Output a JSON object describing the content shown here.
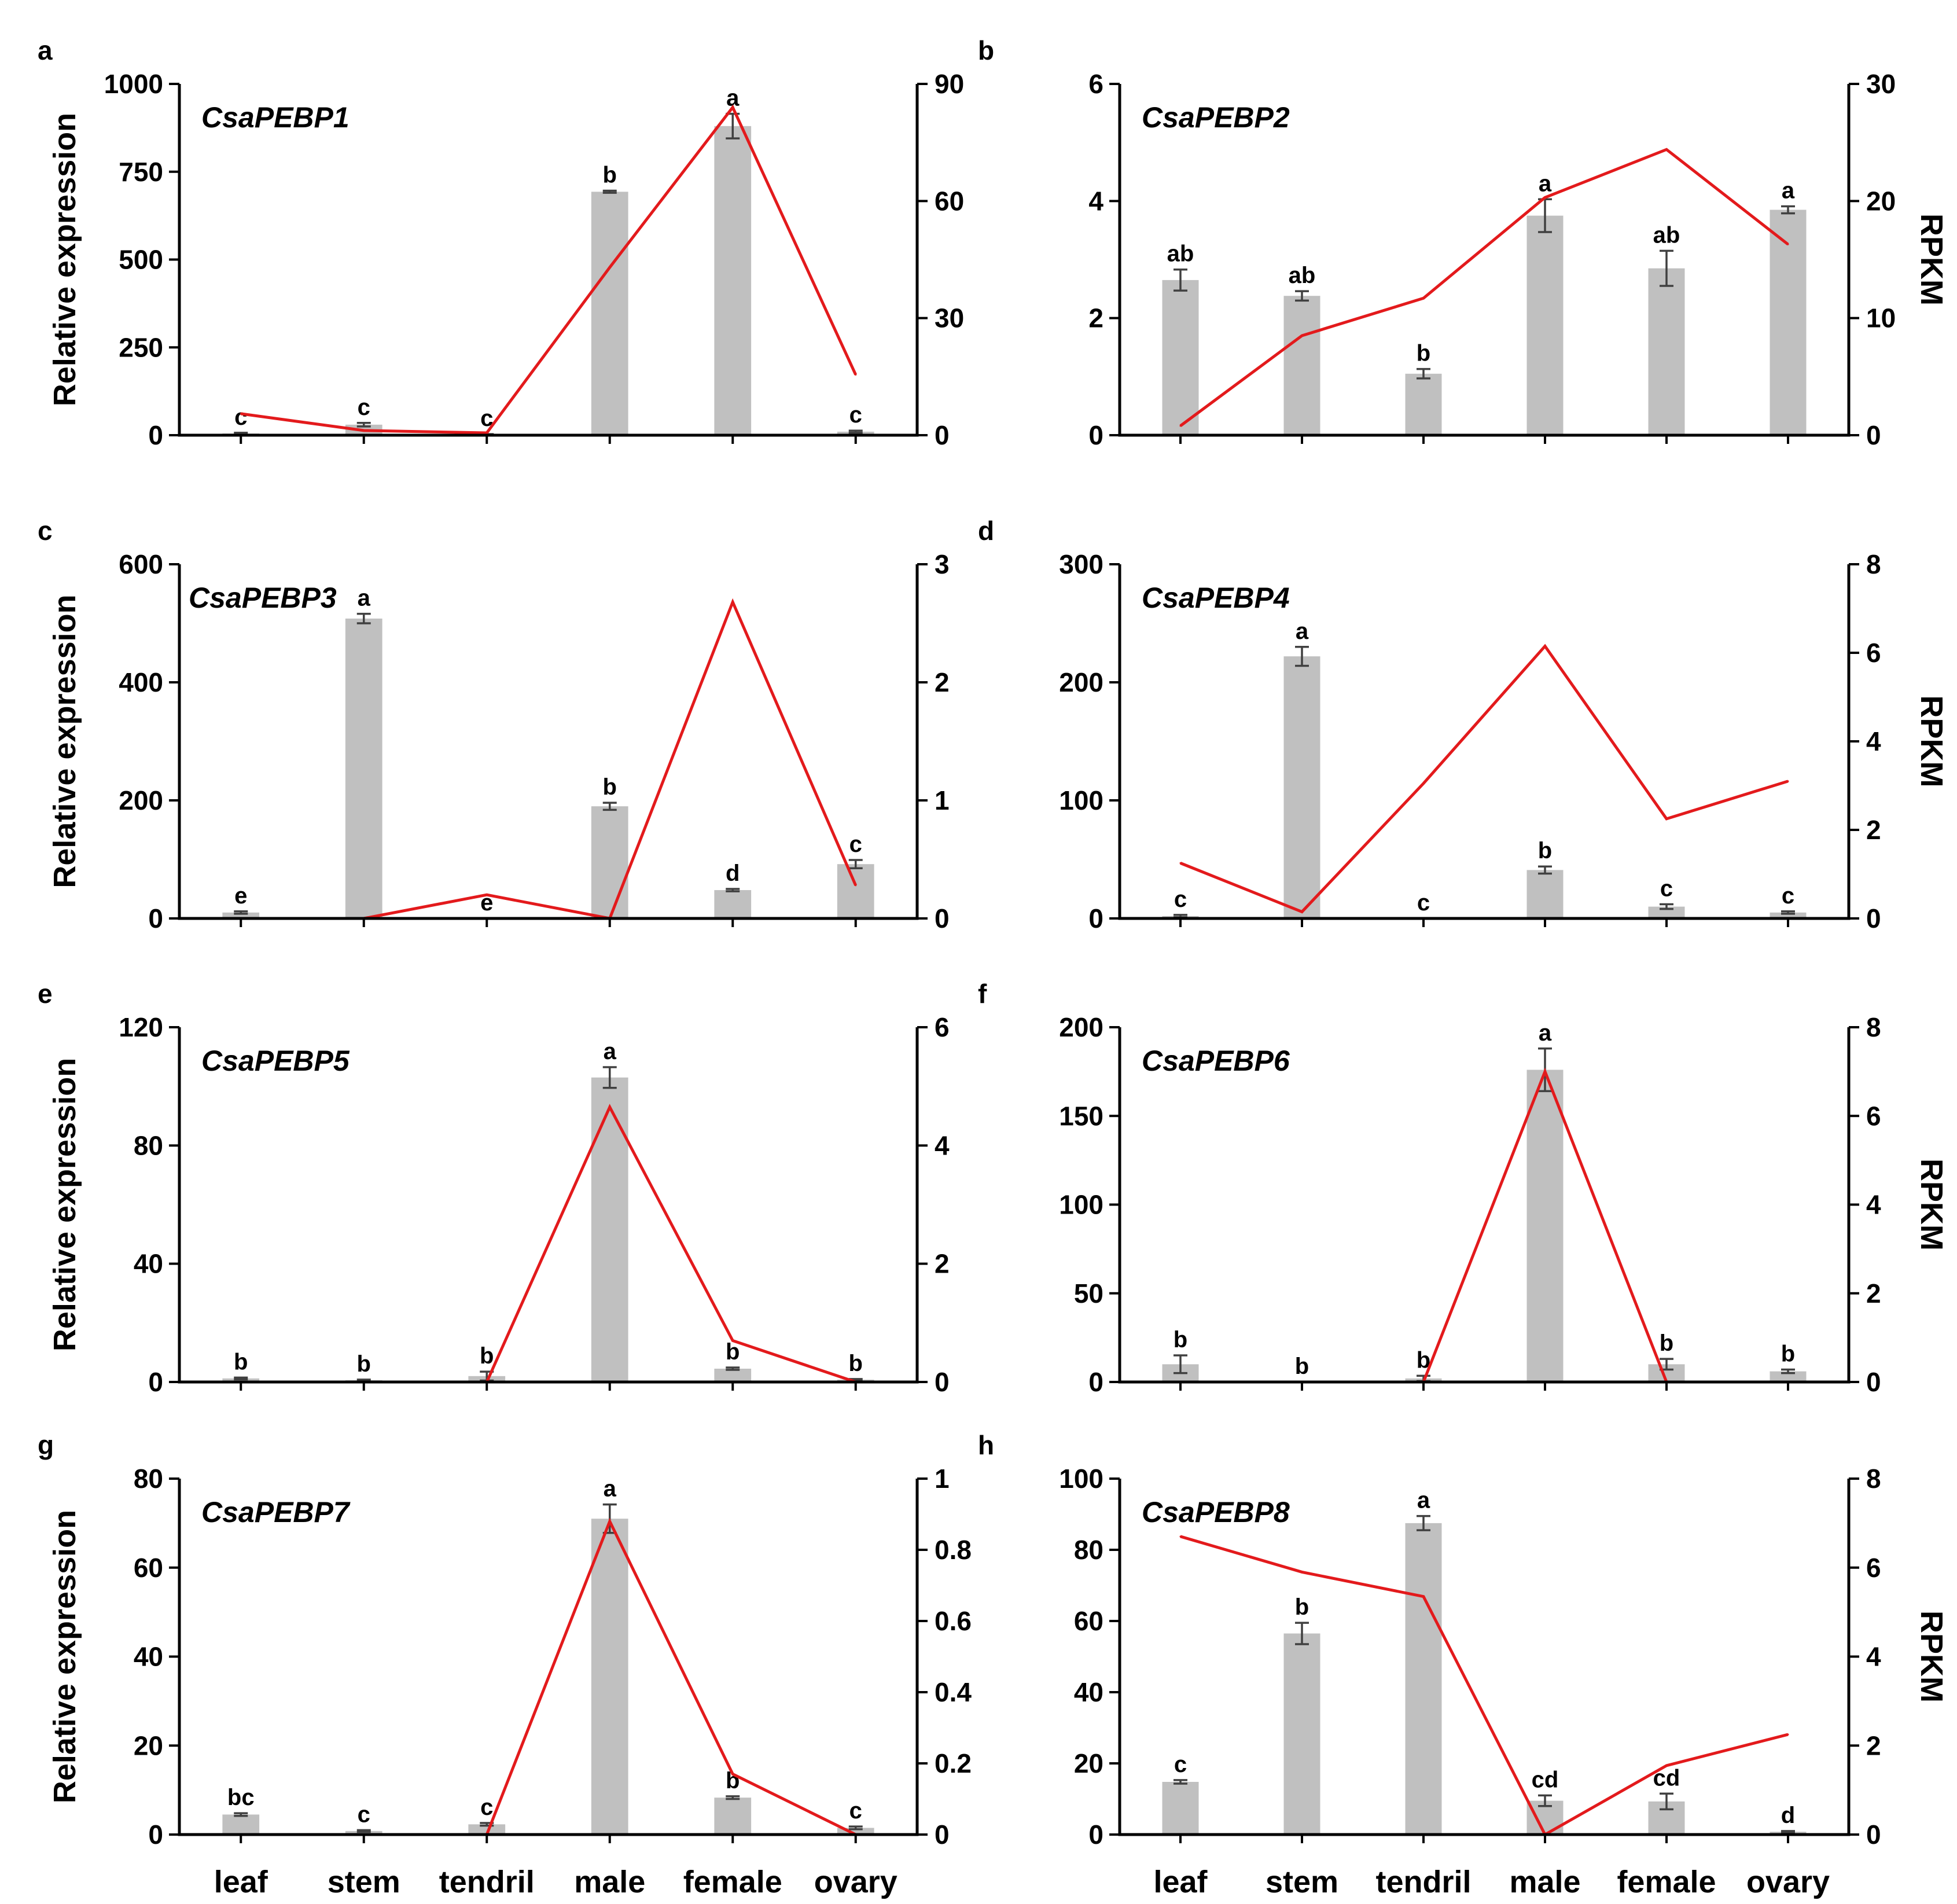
{
  "figure": {
    "categories": [
      "leaf",
      "stem",
      "tendril",
      "male",
      "female",
      "ovary"
    ],
    "left_axis_label": "Relative expression",
    "right_axis_label": "RPKM",
    "colors": {
      "bar": "#c0c0c0",
      "line": "#e31a1c",
      "error": "#404040",
      "axis": "#000000"
    }
  },
  "chart_data": [
    {
      "panel": "a",
      "title": "CsaPEBP1",
      "type": "bar+line",
      "ylim": [
        0,
        1000
      ],
      "yticks": [
        "0",
        "250",
        "500",
        "750",
        "1000"
      ],
      "y2lim": [
        0,
        90
      ],
      "y2ticks": [
        "0",
        "30",
        "60",
        "90"
      ],
      "ylabel": "Relative expression",
      "y2label": "",
      "values": [
        5,
        30,
        2,
        693,
        880,
        10
      ],
      "errors": [
        2,
        5,
        1,
        3,
        35,
        3
      ],
      "significance": [
        "c",
        "c",
        "c",
        "b",
        "a",
        "c"
      ],
      "rpkm": [
        5.5,
        1.2,
        0.6,
        43,
        84,
        15.5
      ]
    },
    {
      "panel": "b",
      "title": "CsaPEBP2",
      "type": "bar+line",
      "ylim": [
        0,
        6
      ],
      "yticks": [
        "0",
        "2",
        "4",
        "6"
      ],
      "y2lim": [
        0,
        30
      ],
      "y2ticks": [
        "0",
        "10",
        "20",
        "30"
      ],
      "ylabel": "",
      "y2label": "RPKM",
      "values": [
        2.65,
        2.38,
        1.05,
        3.75,
        2.85,
        3.85
      ],
      "errors": [
        0.18,
        0.08,
        0.08,
        0.28,
        0.3,
        0.06
      ],
      "significance": [
        "ab",
        "ab",
        "b",
        "a",
        "ab",
        "a"
      ],
      "rpkm": [
        0.8,
        8.5,
        11.7,
        20.3,
        24.4,
        16.3
      ]
    },
    {
      "panel": "c",
      "title": "CsaPEBP3",
      "type": "bar+line",
      "ylim": [
        0,
        600
      ],
      "yticks": [
        "0",
        "200",
        "400",
        "600"
      ],
      "y2lim": [
        0,
        3
      ],
      "y2ticks": [
        "0",
        "1",
        "2",
        "3"
      ],
      "ylabel": "Relative expression",
      "y2label": "",
      "values": [
        10,
        508,
        0,
        190,
        48,
        92
      ],
      "errors": [
        2,
        8,
        0,
        6,
        2,
        7
      ],
      "significance": [
        "e",
        "a",
        "e",
        "b",
        "d",
        "c"
      ],
      "rpkm": [
        0,
        0,
        0.2,
        0,
        2.68,
        0.28
      ]
    },
    {
      "panel": "d",
      "title": "CsaPEBP4",
      "type": "bar+line",
      "ylim": [
        0,
        300
      ],
      "yticks": [
        "0",
        "100",
        "200",
        "300"
      ],
      "y2lim": [
        0,
        8
      ],
      "y2ticks": [
        "0",
        "2",
        "4",
        "6",
        "8"
      ],
      "ylabel": "",
      "y2label": "RPKM",
      "values": [
        2,
        222,
        0,
        41,
        10,
        5
      ],
      "errors": [
        1,
        8,
        0,
        3,
        2,
        1
      ],
      "significance": [
        "c",
        "a",
        "c",
        "b",
        "c",
        "c"
      ],
      "rpkm": [
        1.25,
        0.15,
        3.05,
        6.15,
        2.25,
        3.1
      ]
    },
    {
      "panel": "e",
      "title": "CsaPEBP5",
      "type": "bar+line",
      "ylim": [
        0,
        120
      ],
      "yticks": [
        "0",
        "40",
        "80",
        "120"
      ],
      "y2lim": [
        0,
        6
      ],
      "y2ticks": [
        "0",
        "2",
        "4",
        "6"
      ],
      "ylabel": "Relative expression",
      "y2label": "",
      "values": [
        1.2,
        0.6,
        2,
        103,
        4.5,
        0.8
      ],
      "errors": [
        0.3,
        0.2,
        1.5,
        3.5,
        0.4,
        0.2
      ],
      "significance": [
        "b",
        "b",
        "b",
        "a",
        "b",
        "b"
      ],
      "rpkm": [
        0,
        0,
        0,
        4.65,
        0.7,
        0
      ]
    },
    {
      "panel": "f",
      "title": "CsaPEBP6",
      "type": "bar+line",
      "ylim": [
        0,
        200
      ],
      "yticks": [
        "0",
        "50",
        "100",
        "150",
        "200"
      ],
      "y2lim": [
        0,
        8
      ],
      "y2ticks": [
        "0",
        "2",
        "4",
        "6",
        "8"
      ],
      "ylabel": "",
      "y2label": "RPKM",
      "values": [
        10,
        0,
        2,
        176,
        10,
        6
      ],
      "errors": [
        5,
        0,
        1.5,
        12,
        3,
        1
      ],
      "significance": [
        "b",
        "b",
        "b",
        "a",
        "b",
        "b"
      ],
      "rpkm": [
        0,
        0,
        0,
        7,
        0,
        0
      ]
    },
    {
      "panel": "g",
      "title": "CsaPEBP7",
      "type": "bar+line",
      "ylim": [
        0,
        80
      ],
      "yticks": [
        "0",
        "20",
        "40",
        "60",
        "80"
      ],
      "y2lim": [
        0,
        1
      ],
      "y2ticks": [
        "0",
        "0.2",
        "0.4",
        "0.6",
        "0.8",
        "1"
      ],
      "ylabel": "Relative expression",
      "y2label": "",
      "values": [
        4.5,
        0.8,
        2.3,
        71,
        8.3,
        1.5
      ],
      "errors": [
        0.3,
        0.2,
        0.3,
        3.2,
        0.3,
        0.3
      ],
      "significance": [
        "bc",
        "c",
        "c",
        "a",
        "b",
        "c"
      ],
      "rpkm": [
        0,
        0,
        0,
        0.88,
        0.17,
        0
      ]
    },
    {
      "panel": "h",
      "title": "CsaPEBP8",
      "type": "bar+line",
      "ylim": [
        0,
        100
      ],
      "yticks": [
        "0",
        "20",
        "40",
        "60",
        "80",
        "100"
      ],
      "y2lim": [
        0,
        8
      ],
      "y2ticks": [
        "0",
        "2",
        "4",
        "6",
        "8"
      ],
      "ylabel": "",
      "y2label": "RPKM",
      "values": [
        14.8,
        56.5,
        87.5,
        9.5,
        9.3,
        0.8
      ],
      "errors": [
        0.5,
        3,
        2,
        1.5,
        2.2,
        0.2
      ],
      "significance": [
        "c",
        "b",
        "a",
        "cd",
        "cd",
        "d"
      ],
      "rpkm": [
        6.7,
        5.9,
        5.35,
        0,
        1.55,
        2.25
      ]
    }
  ]
}
